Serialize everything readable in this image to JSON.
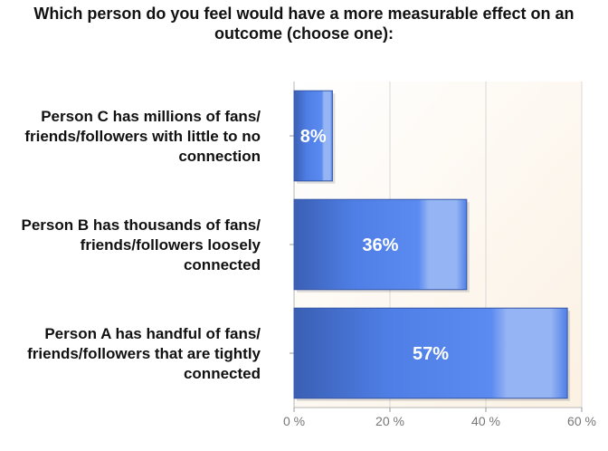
{
  "chart_data": {
    "type": "bar",
    "orientation": "horizontal",
    "title_lines": [
      "Which person do you feel would have a more measurable effect on an",
      "outcome (choose one):"
    ],
    "categories": [
      [
        "Person C has millions of fans/",
        "friends/followers with little to no",
        "connection"
      ],
      [
        "Person B has thousands of fans/",
        "friends/followers loosely",
        "connected"
      ],
      [
        "Person A has handful of fans/",
        "friends/followers that are tightly",
        "connected"
      ]
    ],
    "values": [
      8,
      36,
      57
    ],
    "data_labels": [
      "8%",
      "36%",
      "57%"
    ],
    "xlim": [
      0,
      60
    ],
    "xticks": [
      0,
      20,
      40,
      60
    ],
    "xtick_labels": [
      "0 %",
      "20 %",
      "40 %",
      "60 %"
    ],
    "grid": "vertical",
    "colors": {
      "bar": "#4f7fe6",
      "bar_dark": "#3a5fb4",
      "bar_light": "#95b4f3",
      "plot_bg": "#fdf6ec",
      "grid": "#d9d9d9"
    }
  }
}
